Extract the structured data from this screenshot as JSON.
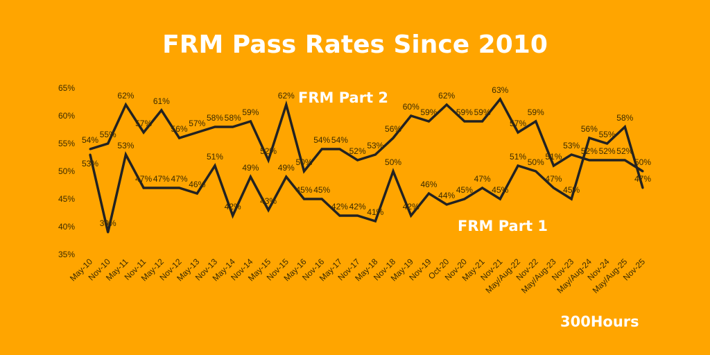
{
  "chart_data": {
    "type": "line",
    "title": "FRM Pass Rates Since 2010",
    "categories": [
      "May-10",
      "Nov-10",
      "May-11",
      "Nov-11",
      "May-12",
      "Nov-12",
      "May-13",
      "Nov-13",
      "May-14",
      "Nov-14",
      "May-15",
      "Nov-15",
      "May-16",
      "Nov-16",
      "May-17",
      "Nov-17",
      "May-18",
      "Nov-18",
      "May-19",
      "Nov-19",
      "Oct-20",
      "Nov-20",
      "May-21",
      "Nov-21",
      "May/Aug-22",
      "Nov-22",
      "May/Aug-23",
      "Nov-23",
      "May/Aug-24",
      "Nov-24",
      "May/Aug-25",
      "Nov-25"
    ],
    "series": [
      {
        "name": "FRM Part 2",
        "values": [
          54,
          55,
          62,
          57,
          61,
          56,
          57,
          58,
          58,
          59,
          52,
          62,
          50,
          54,
          54,
          52,
          53,
          56,
          60,
          59,
          62,
          59,
          59,
          63,
          57,
          59,
          51,
          53,
          52,
          52,
          52,
          50
        ]
      },
      {
        "name": "FRM Part 1",
        "values": [
          53,
          39,
          53,
          47,
          47,
          47,
          46,
          51,
          42,
          49,
          43,
          49,
          45,
          45,
          42,
          42,
          41,
          50,
          42,
          46,
          44,
          45,
          47,
          45,
          51,
          50,
          47,
          45,
          56,
          55,
          58,
          47
        ]
      }
    ],
    "yticks": [
      "35%",
      "40%",
      "45%",
      "50%",
      "55%",
      "60%",
      "65%"
    ],
    "ylim": [
      35,
      65
    ],
    "xlabel": "",
    "ylabel": "",
    "grid": false,
    "legend": "inline labels",
    "line_color": "#222222",
    "background": "#FFA500"
  },
  "brand": "300Hours"
}
